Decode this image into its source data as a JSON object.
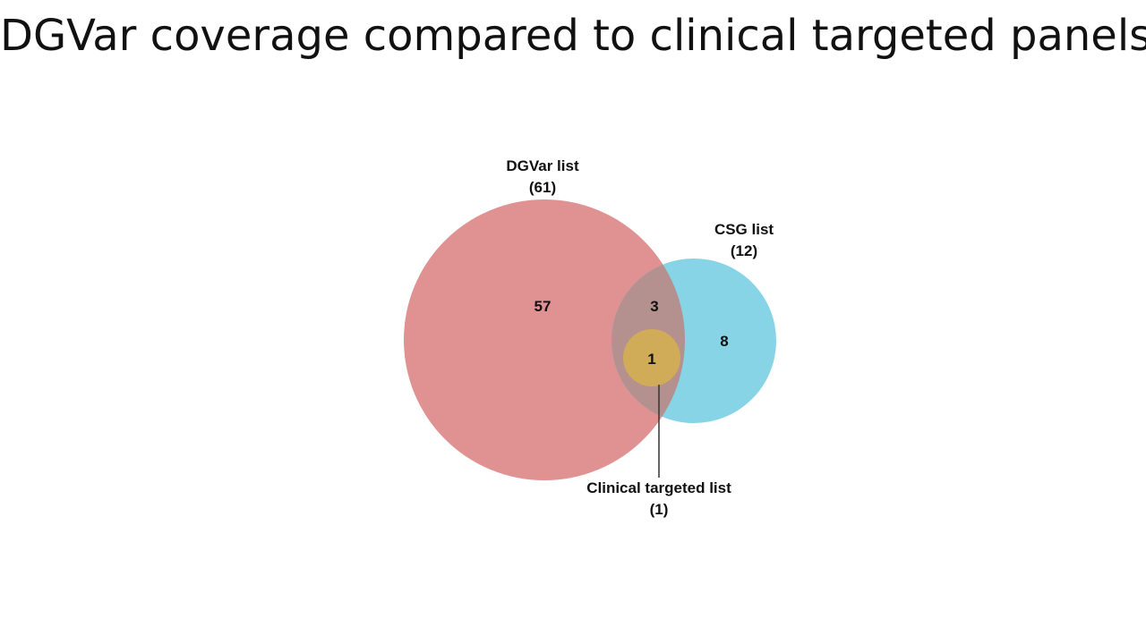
{
  "title": "DGVar coverage compared to clinical targeted panels",
  "sets": [
    {
      "name": "DGVar list",
      "total": "(61)",
      "color": "#e09192"
    },
    {
      "name": "CSG list",
      "total": "(12)",
      "color": "#86d4e6"
    },
    {
      "name": "Clinical targeted list",
      "total": "(1)",
      "color": "#d1ac58"
    }
  ],
  "regions": {
    "dgvar_only": "57",
    "dgvar_csg": "3",
    "csg_only": "8",
    "clinical": "1"
  },
  "colors": {
    "dgvar": "#e09192",
    "csg": "#86d4e6",
    "overlap": "#b4908e",
    "clinical": "#d1ac58",
    "leader_line": "#333333"
  }
}
